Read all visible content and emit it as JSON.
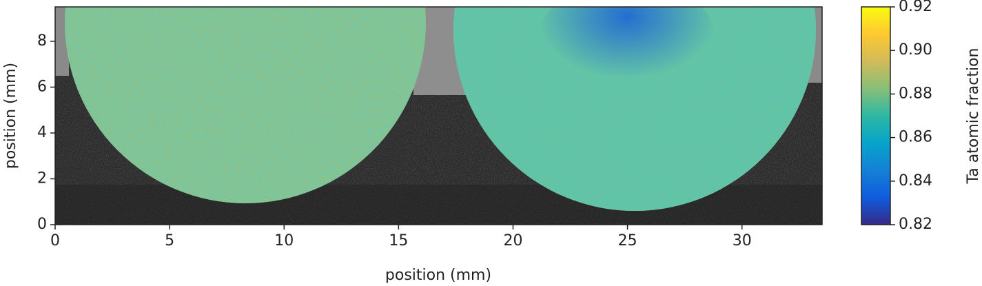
{
  "chart_data": {
    "type": "heatmap",
    "xlabel": "position (mm)",
    "ylabel": "position (mm)",
    "colorbar_label": "Ta atomic fraction",
    "xlim": [
      0,
      33.5
    ],
    "ylim": [
      0,
      9.5
    ],
    "xticks": [
      0,
      5,
      10,
      15,
      20,
      25,
      30
    ],
    "yticks": [
      0,
      2,
      4,
      6,
      8
    ],
    "clim": [
      0.82,
      0.92
    ],
    "cticks": [
      0.82,
      0.84,
      0.86,
      0.88,
      {
        "value": 0.9,
        "label": "0.90"
      },
      0.92
    ],
    "colormap": [
      "#352a87",
      "#0f5cdd",
      "#1481d6",
      "#06a4ca",
      "#2eb7a4",
      "#87bf77",
      "#d1bb59",
      "#fec832",
      "#f9fb0e"
    ]
  }
}
